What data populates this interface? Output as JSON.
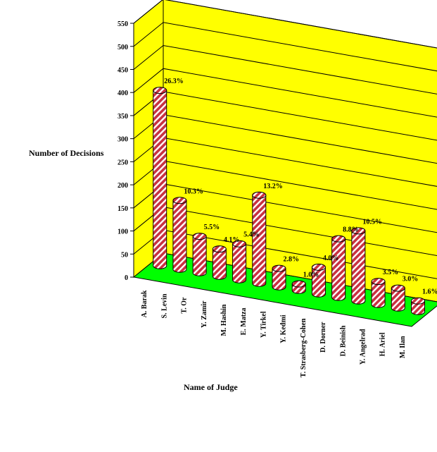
{
  "chart_data": {
    "type": "bar",
    "title": "",
    "xlabel": "Name of Judge",
    "ylabel": "Number of Decisions",
    "ylim": [
      0,
      550
    ],
    "yticks": [
      "0",
      "50",
      "100",
      "150",
      "200",
      "250",
      "300",
      "350",
      "400",
      "450",
      "500",
      "550"
    ],
    "grid": true,
    "style": "3d-cylinder",
    "colors": {
      "back_wall": "#ffff00",
      "side_wall": "#ffff00",
      "floor": "#00ff00",
      "bar": "#c83241",
      "bar_stripe": "#ffffff"
    },
    "categories": [
      "A. Barak",
      "S. Levin",
      "T. Or",
      "Y. Zamir",
      "M. Hashin",
      "E. Matza",
      "Y. Tirkel",
      "Y. Kedmi",
      "T. Strasberg-Cohen",
      "D. Dorner",
      "D. Beinish",
      "Y. Angelrad",
      "H. Ariel",
      "M. Ilan"
    ],
    "values": [
      380,
      149,
      79,
      59,
      78,
      191,
      40,
      14,
      58,
      127,
      152,
      50,
      43,
      23
    ],
    "labels": [
      "26.3%",
      "10.3%",
      "5.5%",
      "4.1%",
      "5.4%",
      "13.2%",
      "2.8%",
      "1.0%",
      "4.0%",
      "8.8%",
      "10.5%",
      "3.5%",
      "3.0%",
      "1.6%"
    ]
  }
}
